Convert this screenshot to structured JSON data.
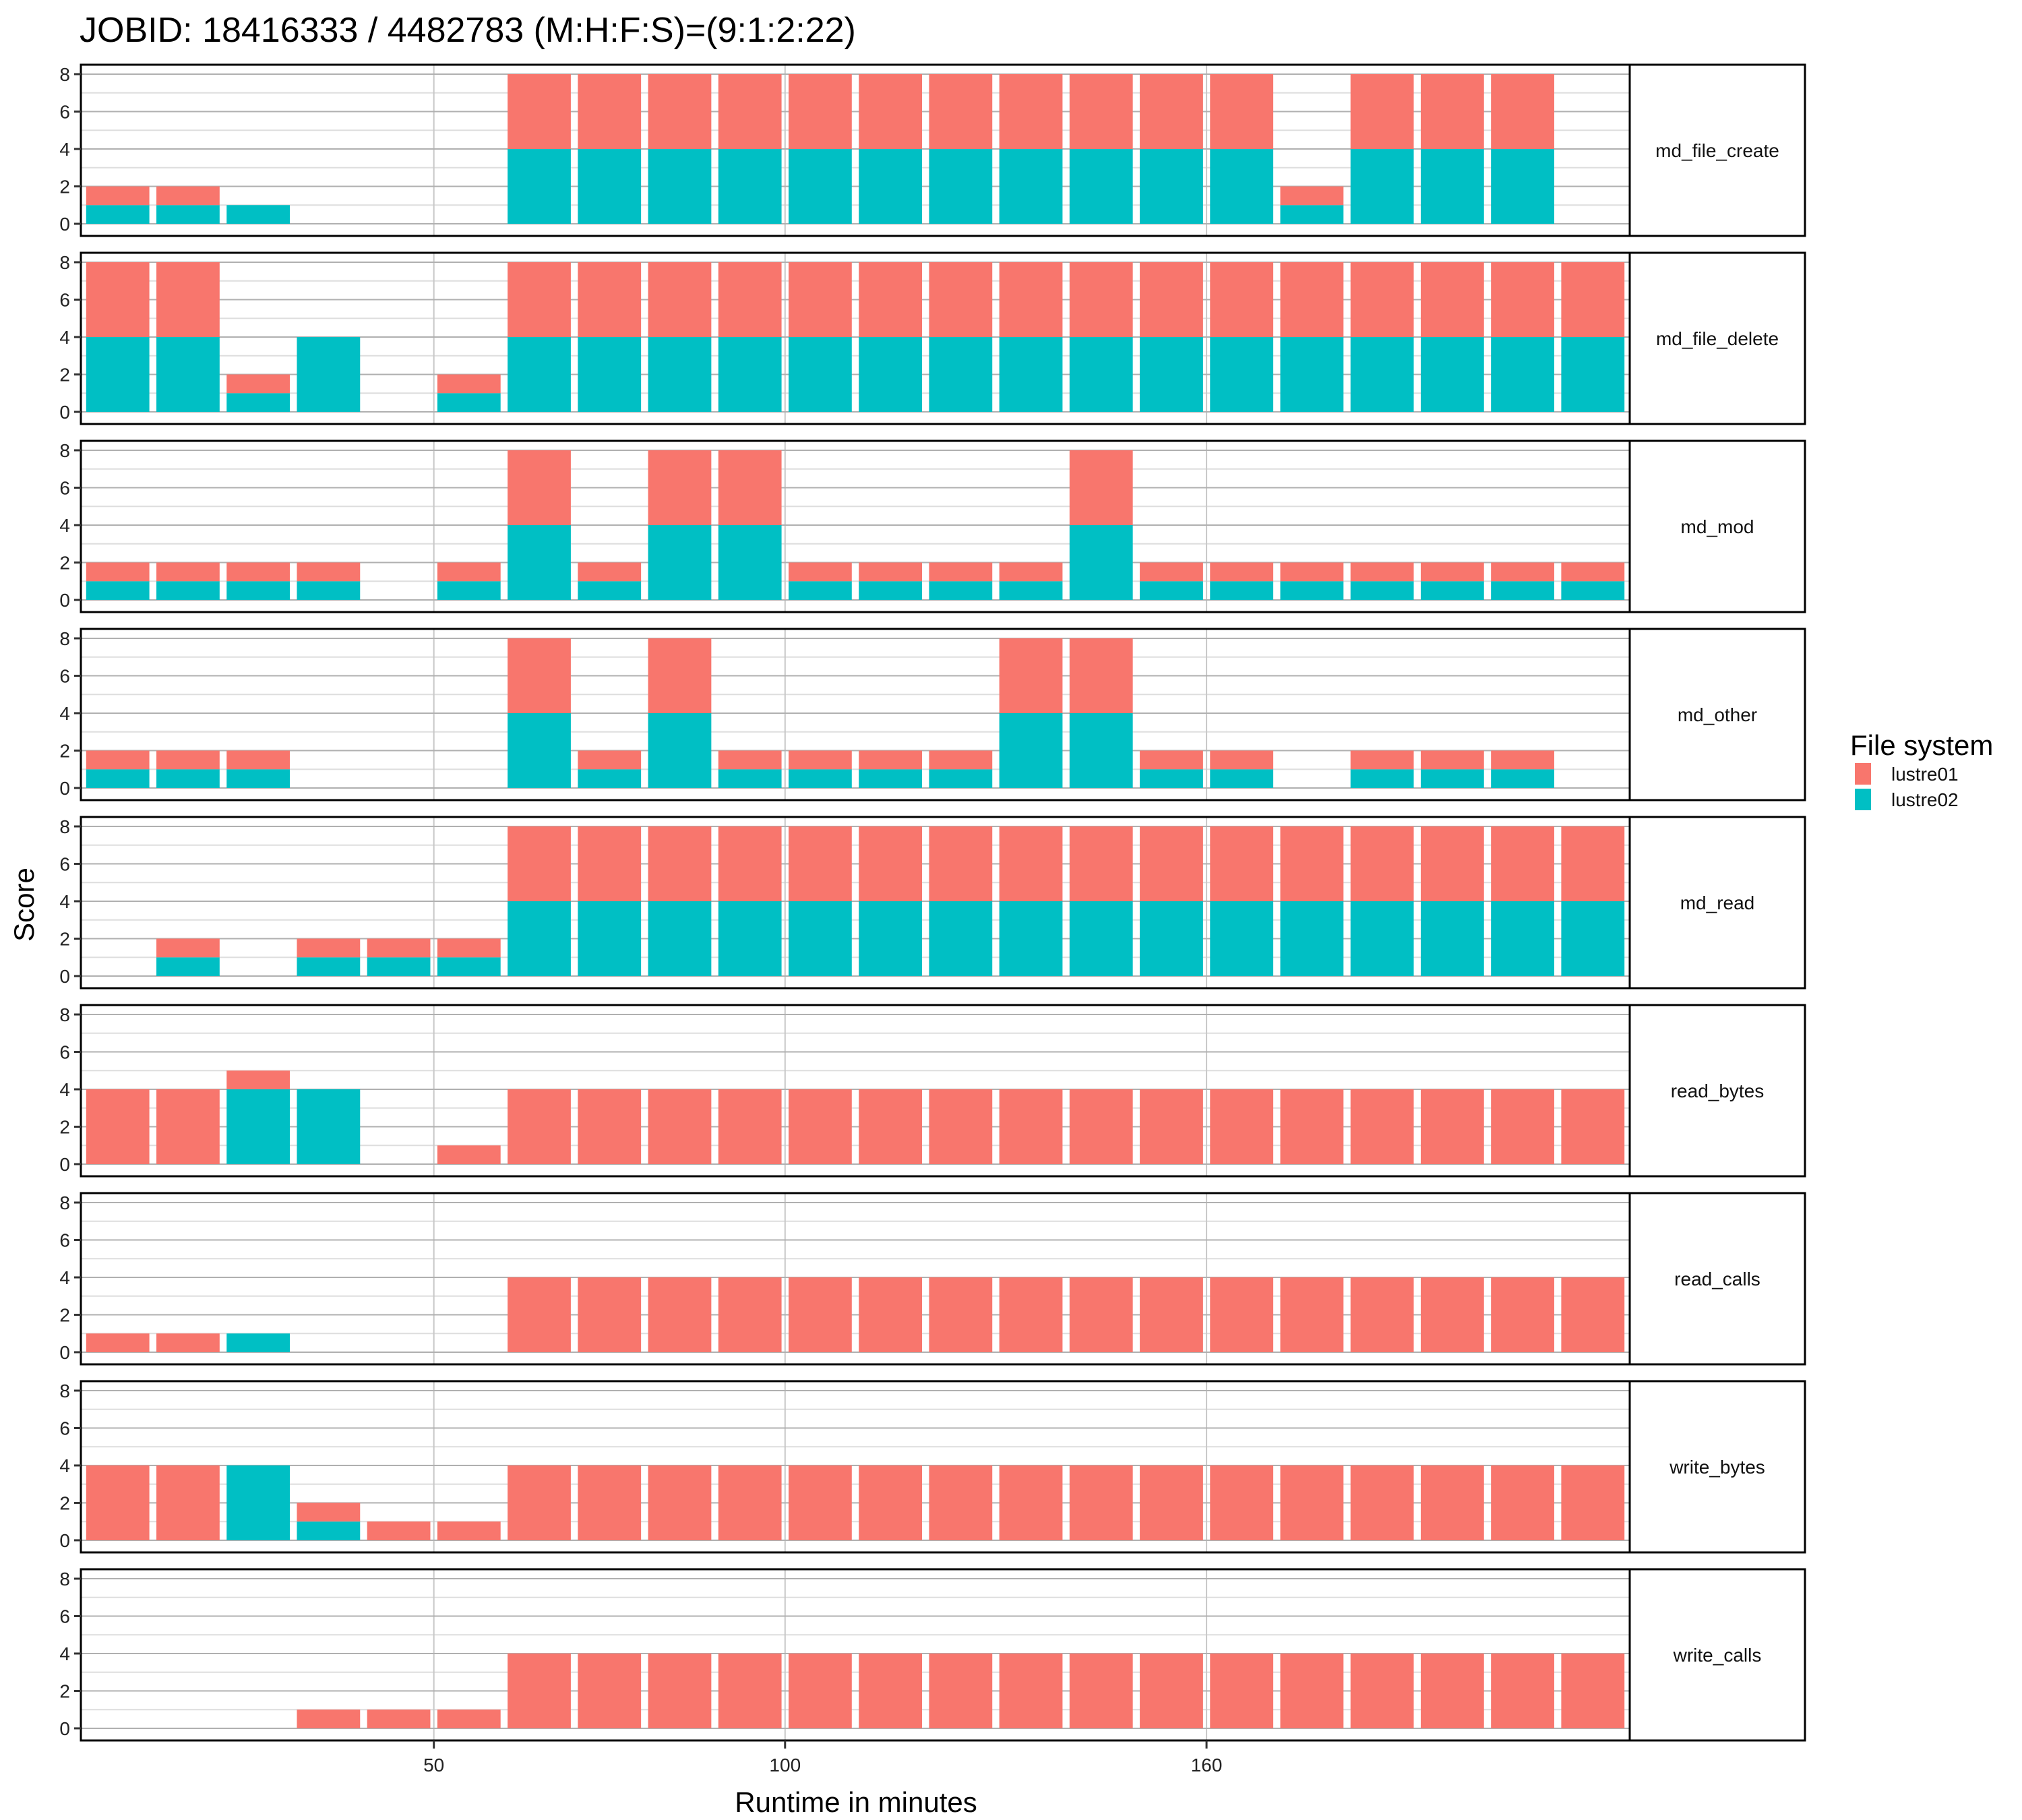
{
  "chart_data": {
    "type": "bar",
    "stacked": true,
    "title": "JOBID: 18416333 / 4482783 (M:H:F:S)=(9:1:2:22)",
    "xlabel": "Runtime in minutes",
    "ylabel": "Score",
    "ylim": [
      0,
      8
    ],
    "yticks": [
      0,
      2,
      4,
      6,
      8
    ],
    "xtick_labels": [
      {
        "label": "50",
        "slot": 5
      },
      {
        "label": "100",
        "slot": 10
      },
      {
        "label": "160",
        "slot": 16
      }
    ],
    "num_slots": 22,
    "grid": true,
    "legend": {
      "title": "File system",
      "placement": "right",
      "entries": [
        {
          "name": "lustre01",
          "color": "#F8766D"
        },
        {
          "name": "lustre02",
          "color": "#00BFC4"
        }
      ]
    },
    "facets": [
      {
        "name": "md_file_create",
        "lustre01": [
          1,
          1,
          0,
          0,
          0,
          0,
          4,
          4,
          4,
          4,
          4,
          4,
          4,
          4,
          4,
          4,
          4,
          1,
          4,
          4,
          4,
          0
        ],
        "lustre02": [
          1,
          1,
          1,
          0,
          0,
          0,
          4,
          4,
          4,
          4,
          4,
          4,
          4,
          4,
          4,
          4,
          4,
          1,
          4,
          4,
          4,
          0
        ]
      },
      {
        "name": "md_file_delete",
        "lustre01": [
          4,
          4,
          1,
          0,
          0,
          1,
          4,
          4,
          4,
          4,
          4,
          4,
          4,
          4,
          4,
          4,
          4,
          4,
          4,
          4,
          4,
          4
        ],
        "lustre02": [
          4,
          4,
          1,
          4,
          0,
          1,
          4,
          4,
          4,
          4,
          4,
          4,
          4,
          4,
          4,
          4,
          4,
          4,
          4,
          4,
          4,
          4
        ]
      },
      {
        "name": "md_mod",
        "lustre01": [
          1,
          1,
          1,
          1,
          0,
          1,
          4,
          1,
          4,
          4,
          1,
          1,
          1,
          1,
          4,
          1,
          1,
          1,
          1,
          1,
          1,
          1
        ],
        "lustre02": [
          1,
          1,
          1,
          1,
          0,
          1,
          4,
          1,
          4,
          4,
          1,
          1,
          1,
          1,
          4,
          1,
          1,
          1,
          1,
          1,
          1,
          1
        ]
      },
      {
        "name": "md_other",
        "lustre01": [
          1,
          1,
          1,
          0,
          0,
          0,
          4,
          1,
          4,
          1,
          1,
          1,
          1,
          4,
          4,
          1,
          1,
          0,
          1,
          1,
          1,
          0
        ],
        "lustre02": [
          1,
          1,
          1,
          0,
          0,
          0,
          4,
          1,
          4,
          1,
          1,
          1,
          1,
          4,
          4,
          1,
          1,
          0,
          1,
          1,
          1,
          0
        ]
      },
      {
        "name": "md_read",
        "lustre01": [
          0,
          1,
          0,
          1,
          1,
          1,
          4,
          4,
          4,
          4,
          4,
          4,
          4,
          4,
          4,
          4,
          4,
          4,
          4,
          4,
          4,
          4
        ],
        "lustre02": [
          0,
          1,
          0,
          1,
          1,
          1,
          4,
          4,
          4,
          4,
          4,
          4,
          4,
          4,
          4,
          4,
          4,
          4,
          4,
          4,
          4,
          4
        ]
      },
      {
        "name": "read_bytes",
        "lustre01": [
          4,
          4,
          1,
          0,
          0,
          1,
          4,
          4,
          4,
          4,
          4,
          4,
          4,
          4,
          4,
          4,
          4,
          4,
          4,
          4,
          4,
          4
        ],
        "lustre02": [
          0,
          0,
          4,
          4,
          0,
          0,
          0,
          0,
          0,
          0,
          0,
          0,
          0,
          0,
          0,
          0,
          0,
          0,
          0,
          0,
          0,
          0
        ]
      },
      {
        "name": "read_calls",
        "lustre01": [
          1,
          1,
          0,
          0,
          0,
          0,
          4,
          4,
          4,
          4,
          4,
          4,
          4,
          4,
          4,
          4,
          4,
          4,
          4,
          4,
          4,
          4
        ],
        "lustre02": [
          0,
          0,
          1,
          0,
          0,
          0,
          0,
          0,
          0,
          0,
          0,
          0,
          0,
          0,
          0,
          0,
          0,
          0,
          0,
          0,
          0,
          0
        ]
      },
      {
        "name": "write_bytes",
        "lustre01": [
          4,
          4,
          0,
          1,
          1,
          1,
          4,
          4,
          4,
          4,
          4,
          4,
          4,
          4,
          4,
          4,
          4,
          4,
          4,
          4,
          4,
          4
        ],
        "lustre02": [
          0,
          0,
          4,
          1,
          0,
          0,
          0,
          0,
          0,
          0,
          0,
          0,
          0,
          0,
          0,
          0,
          0,
          0,
          0,
          0,
          0,
          0
        ]
      },
      {
        "name": "write_calls",
        "lustre01": [
          0,
          0,
          0,
          1,
          1,
          1,
          4,
          4,
          4,
          4,
          4,
          4,
          4,
          4,
          4,
          4,
          4,
          4,
          4,
          4,
          4,
          4
        ],
        "lustre02": [
          0,
          0,
          0,
          0,
          0,
          0,
          0,
          0,
          0,
          0,
          0,
          0,
          0,
          0,
          0,
          0,
          0,
          0,
          0,
          0,
          0,
          0
        ]
      }
    ]
  }
}
